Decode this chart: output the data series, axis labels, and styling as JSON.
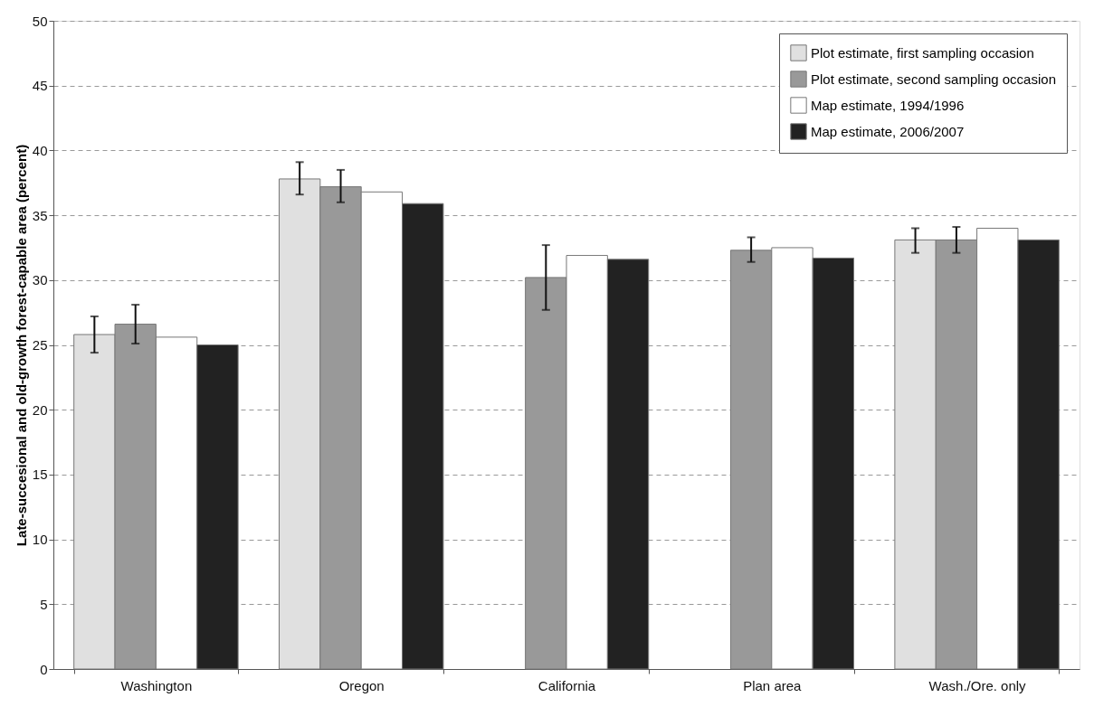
{
  "chart_data": {
    "type": "bar",
    "ylabel": "Late-succesional and old-growth forest-capable area (percent)",
    "categories": [
      "Washington",
      "Oregon",
      "California",
      "Plan area",
      "Wash./Ore. only"
    ],
    "series": [
      {
        "name": "Plot estimate, first sampling occasion",
        "color": "#e0e0e0",
        "values": [
          25.8,
          37.8,
          null,
          null,
          33.1
        ],
        "errors": [
          [
            24.4,
            27.2
          ],
          [
            36.6,
            39.1
          ],
          null,
          null,
          [
            32.1,
            34.0
          ]
        ]
      },
      {
        "name": "Plot estimate, second sampling occasion",
        "color": "#999999",
        "values": [
          26.6,
          37.2,
          30.2,
          32.3,
          33.1
        ],
        "errors": [
          [
            25.1,
            28.1
          ],
          [
            36.0,
            38.5
          ],
          [
            27.7,
            32.7
          ],
          [
            31.4,
            33.3
          ],
          [
            32.1,
            34.1
          ]
        ]
      },
      {
        "name": "Map estimate, 1994/1996",
        "color": "#ffffff",
        "values": [
          25.6,
          36.8,
          31.9,
          32.5,
          34.0
        ]
      },
      {
        "name": "Map estimate, 2006/2007",
        "color": "#222222",
        "values": [
          25.0,
          35.9,
          31.6,
          31.7,
          33.1
        ]
      }
    ],
    "ylim": [
      0,
      50
    ],
    "yticks": [
      0,
      5,
      10,
      15,
      20,
      25,
      30,
      35,
      40,
      45,
      50
    ],
    "grid": "y",
    "legend": "top right"
  }
}
